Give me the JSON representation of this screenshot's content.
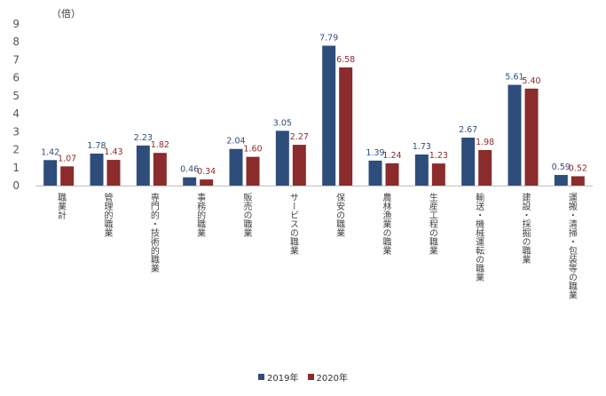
{
  "chart_data": {
    "type": "bar",
    "unit_label": "（倍）",
    "categories": [
      "職業計",
      "管理的職業",
      "専門的・技術的職業",
      "事務的職業",
      "販売の職業",
      "サービスの職業",
      "保安の職業",
      "農林漁業の職業",
      "生産工程の職業",
      "輸送・機械運転の職業",
      "建設・採掘の職業",
      "運搬・清掃・包装等の職業"
    ],
    "series": [
      {
        "name": "2019年",
        "color": "#2e4d7b",
        "values": [
          1.42,
          1.78,
          2.23,
          0.46,
          2.04,
          3.05,
          7.79,
          1.39,
          1.73,
          2.67,
          5.61,
          0.59
        ],
        "labels": [
          "1.42",
          "1.78",
          "2.23",
          "0.46",
          "2.04",
          "3.05",
          "7.79",
          "1.39",
          "1.73",
          "2.67",
          "5.61",
          "0.59"
        ]
      },
      {
        "name": "2020年",
        "color": "#8b2b2b",
        "values": [
          1.07,
          1.43,
          1.82,
          0.34,
          1.6,
          2.27,
          6.58,
          1.24,
          1.23,
          1.98,
          5.4,
          0.52
        ],
        "labels": [
          "1.07",
          "1.43",
          "1.82",
          "0.34",
          "1.60",
          "2.27",
          "6.58",
          "1.24",
          "1.23",
          "1.98",
          "5.40",
          "0.52"
        ]
      }
    ],
    "yticks": [
      "0",
      "1",
      "2",
      "3",
      "4",
      "5",
      "6",
      "7",
      "8",
      "9"
    ],
    "ylim": [
      0,
      9
    ],
    "grid": false,
    "legend_position": "bottom"
  }
}
